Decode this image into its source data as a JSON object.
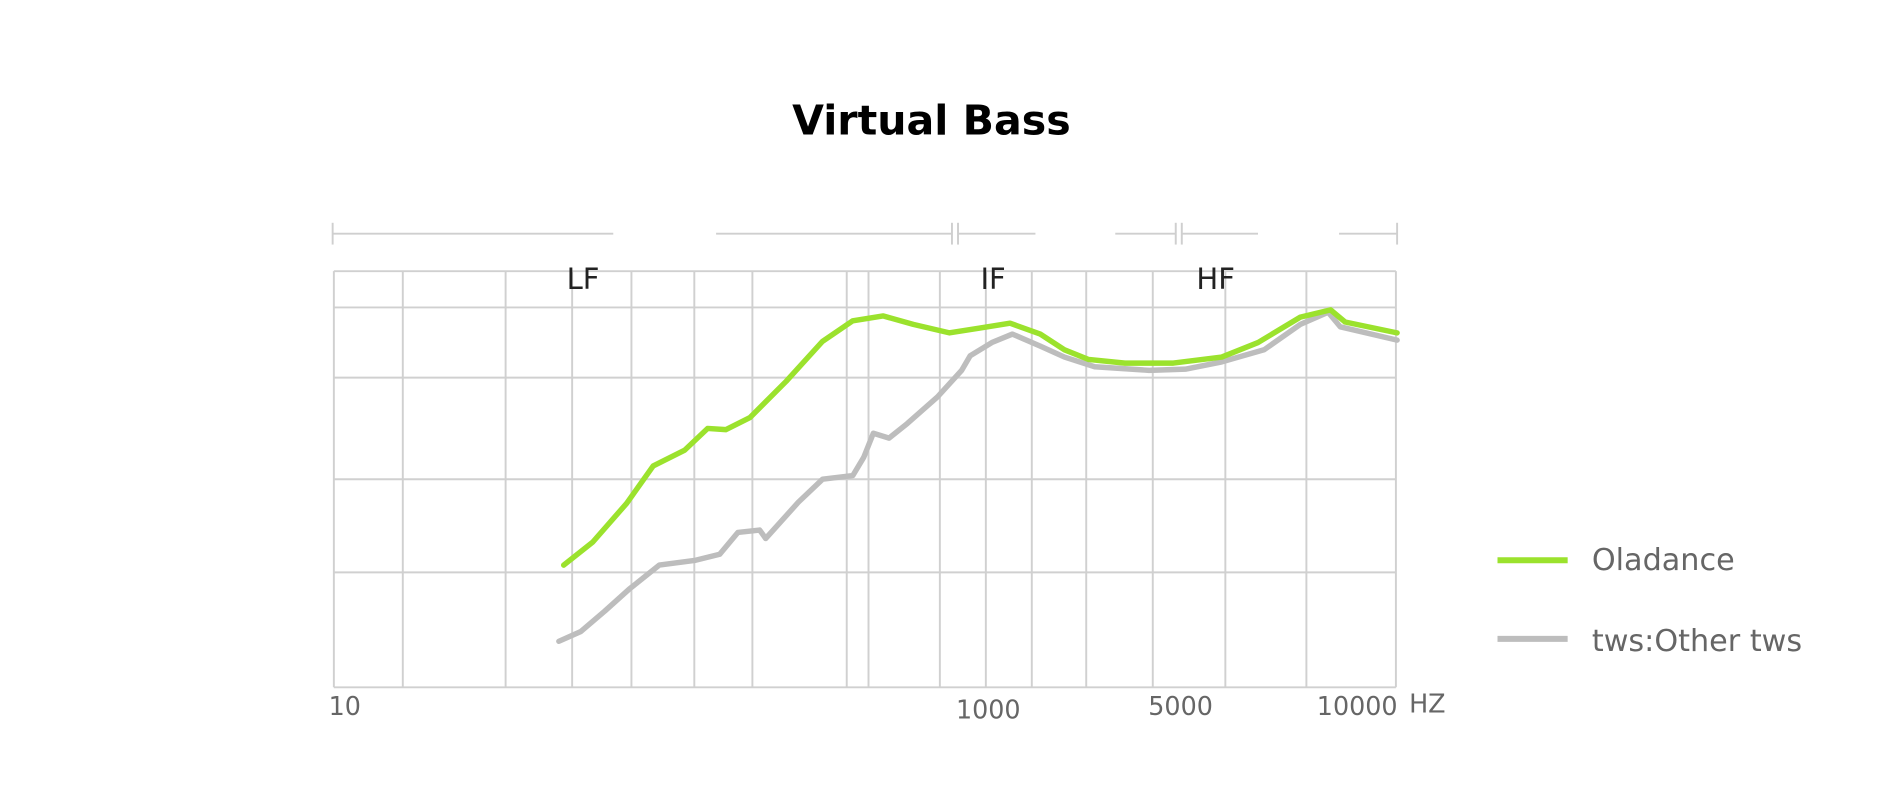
{
  "title": "Virtual Bass",
  "bands": [
    "LF",
    "IF",
    "HF"
  ],
  "x_axis": {
    "ticks": [
      "10",
      "1000",
      "5000",
      "10000"
    ],
    "unit": "HZ"
  },
  "legend": [
    {
      "name": "Oladance",
      "color": "#9be22d"
    },
    {
      "name": "tws:Other tws",
      "color": "#bdbdbd"
    }
  ]
}
